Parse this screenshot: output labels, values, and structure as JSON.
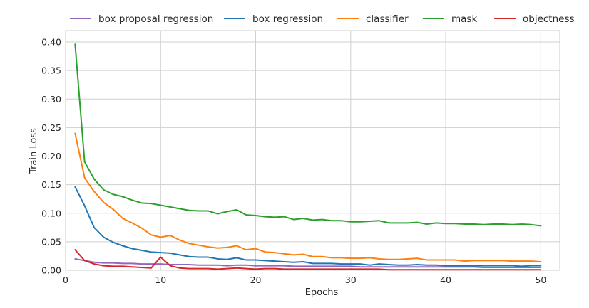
{
  "chart_data": {
    "type": "line",
    "title": "",
    "xlabel": "Epochs",
    "ylabel": "Train Loss",
    "xlim": [
      0,
      52
    ],
    "ylim": [
      0,
      0.42
    ],
    "xticks": [
      0,
      10,
      20,
      30,
      40,
      50
    ],
    "xtick_labels": [
      "0",
      "10",
      "20",
      "30",
      "40",
      "50"
    ],
    "yticks": [
      0.0,
      0.05,
      0.1,
      0.15,
      0.2,
      0.25,
      0.3,
      0.35,
      0.4
    ],
    "ytick_labels": [
      "0.00",
      "0.05",
      "0.10",
      "0.15",
      "0.20",
      "0.25",
      "0.30",
      "0.35",
      "0.40"
    ],
    "grid": true,
    "legend_position": "top",
    "x": [
      1,
      2,
      3,
      4,
      5,
      6,
      7,
      8,
      9,
      10,
      11,
      12,
      13,
      14,
      15,
      16,
      17,
      18,
      19,
      20,
      21,
      22,
      23,
      24,
      25,
      26,
      27,
      28,
      29,
      30,
      31,
      32,
      33,
      34,
      35,
      36,
      37,
      38,
      39,
      40,
      41,
      42,
      43,
      44,
      45,
      46,
      47,
      48,
      49,
      50
    ],
    "series": [
      {
        "name": "box proposal regression",
        "color": "#9467bd",
        "values": [
          0.02,
          0.017,
          0.014,
          0.013,
          0.013,
          0.012,
          0.012,
          0.011,
          0.011,
          0.011,
          0.01,
          0.01,
          0.01,
          0.009,
          0.009,
          0.009,
          0.008,
          0.009,
          0.009,
          0.008,
          0.008,
          0.008,
          0.008,
          0.007,
          0.007,
          0.007,
          0.007,
          0.007,
          0.007,
          0.007,
          0.006,
          0.006,
          0.006,
          0.006,
          0.006,
          0.006,
          0.006,
          0.006,
          0.006,
          0.006,
          0.006,
          0.006,
          0.006,
          0.005,
          0.005,
          0.005,
          0.005,
          0.005,
          0.005,
          0.005
        ]
      },
      {
        "name": "box regression",
        "color": "#1f77b4",
        "values": [
          0.146,
          0.113,
          0.075,
          0.058,
          0.049,
          0.043,
          0.038,
          0.035,
          0.032,
          0.031,
          0.03,
          0.027,
          0.024,
          0.023,
          0.023,
          0.02,
          0.019,
          0.022,
          0.018,
          0.018,
          0.017,
          0.016,
          0.015,
          0.014,
          0.015,
          0.012,
          0.012,
          0.012,
          0.011,
          0.011,
          0.011,
          0.009,
          0.011,
          0.01,
          0.009,
          0.009,
          0.01,
          0.009,
          0.009,
          0.008,
          0.008,
          0.008,
          0.008,
          0.008,
          0.008,
          0.008,
          0.008,
          0.007,
          0.008,
          0.008
        ]
      },
      {
        "name": "classifier",
        "color": "#ff7f0e",
        "values": [
          0.24,
          0.162,
          0.138,
          0.119,
          0.107,
          0.091,
          0.083,
          0.074,
          0.062,
          0.058,
          0.061,
          0.053,
          0.047,
          0.044,
          0.041,
          0.039,
          0.04,
          0.043,
          0.036,
          0.038,
          0.032,
          0.031,
          0.029,
          0.027,
          0.028,
          0.024,
          0.024,
          0.022,
          0.022,
          0.021,
          0.021,
          0.022,
          0.02,
          0.019,
          0.019,
          0.02,
          0.021,
          0.018,
          0.018,
          0.018,
          0.018,
          0.016,
          0.017,
          0.017,
          0.017,
          0.017,
          0.016,
          0.016,
          0.016,
          0.015
        ]
      },
      {
        "name": "mask",
        "color": "#2ca02c",
        "values": [
          0.396,
          0.19,
          0.16,
          0.141,
          0.133,
          0.129,
          0.123,
          0.118,
          0.117,
          0.114,
          0.111,
          0.108,
          0.105,
          0.104,
          0.104,
          0.099,
          0.103,
          0.106,
          0.097,
          0.096,
          0.094,
          0.093,
          0.094,
          0.089,
          0.091,
          0.088,
          0.089,
          0.087,
          0.087,
          0.085,
          0.085,
          0.086,
          0.087,
          0.083,
          0.083,
          0.083,
          0.084,
          0.081,
          0.083,
          0.082,
          0.082,
          0.081,
          0.081,
          0.08,
          0.081,
          0.081,
          0.08,
          0.081,
          0.08,
          0.078
        ]
      },
      {
        "name": "objectness",
        "color": "#d62728",
        "values": [
          0.036,
          0.017,
          0.011,
          0.008,
          0.007,
          0.007,
          0.006,
          0.005,
          0.004,
          0.023,
          0.008,
          0.004,
          0.003,
          0.003,
          0.003,
          0.002,
          0.003,
          0.004,
          0.003,
          0.002,
          0.003,
          0.003,
          0.002,
          0.002,
          0.002,
          0.002,
          0.002,
          0.002,
          0.002,
          0.002,
          0.002,
          0.002,
          0.002,
          0.001,
          0.001,
          0.001,
          0.001,
          0.001,
          0.001,
          0.001,
          0.001,
          0.001,
          0.001,
          0.001,
          0.001,
          0.001,
          0.001,
          0.001,
          0.001,
          0.001
        ]
      }
    ]
  }
}
